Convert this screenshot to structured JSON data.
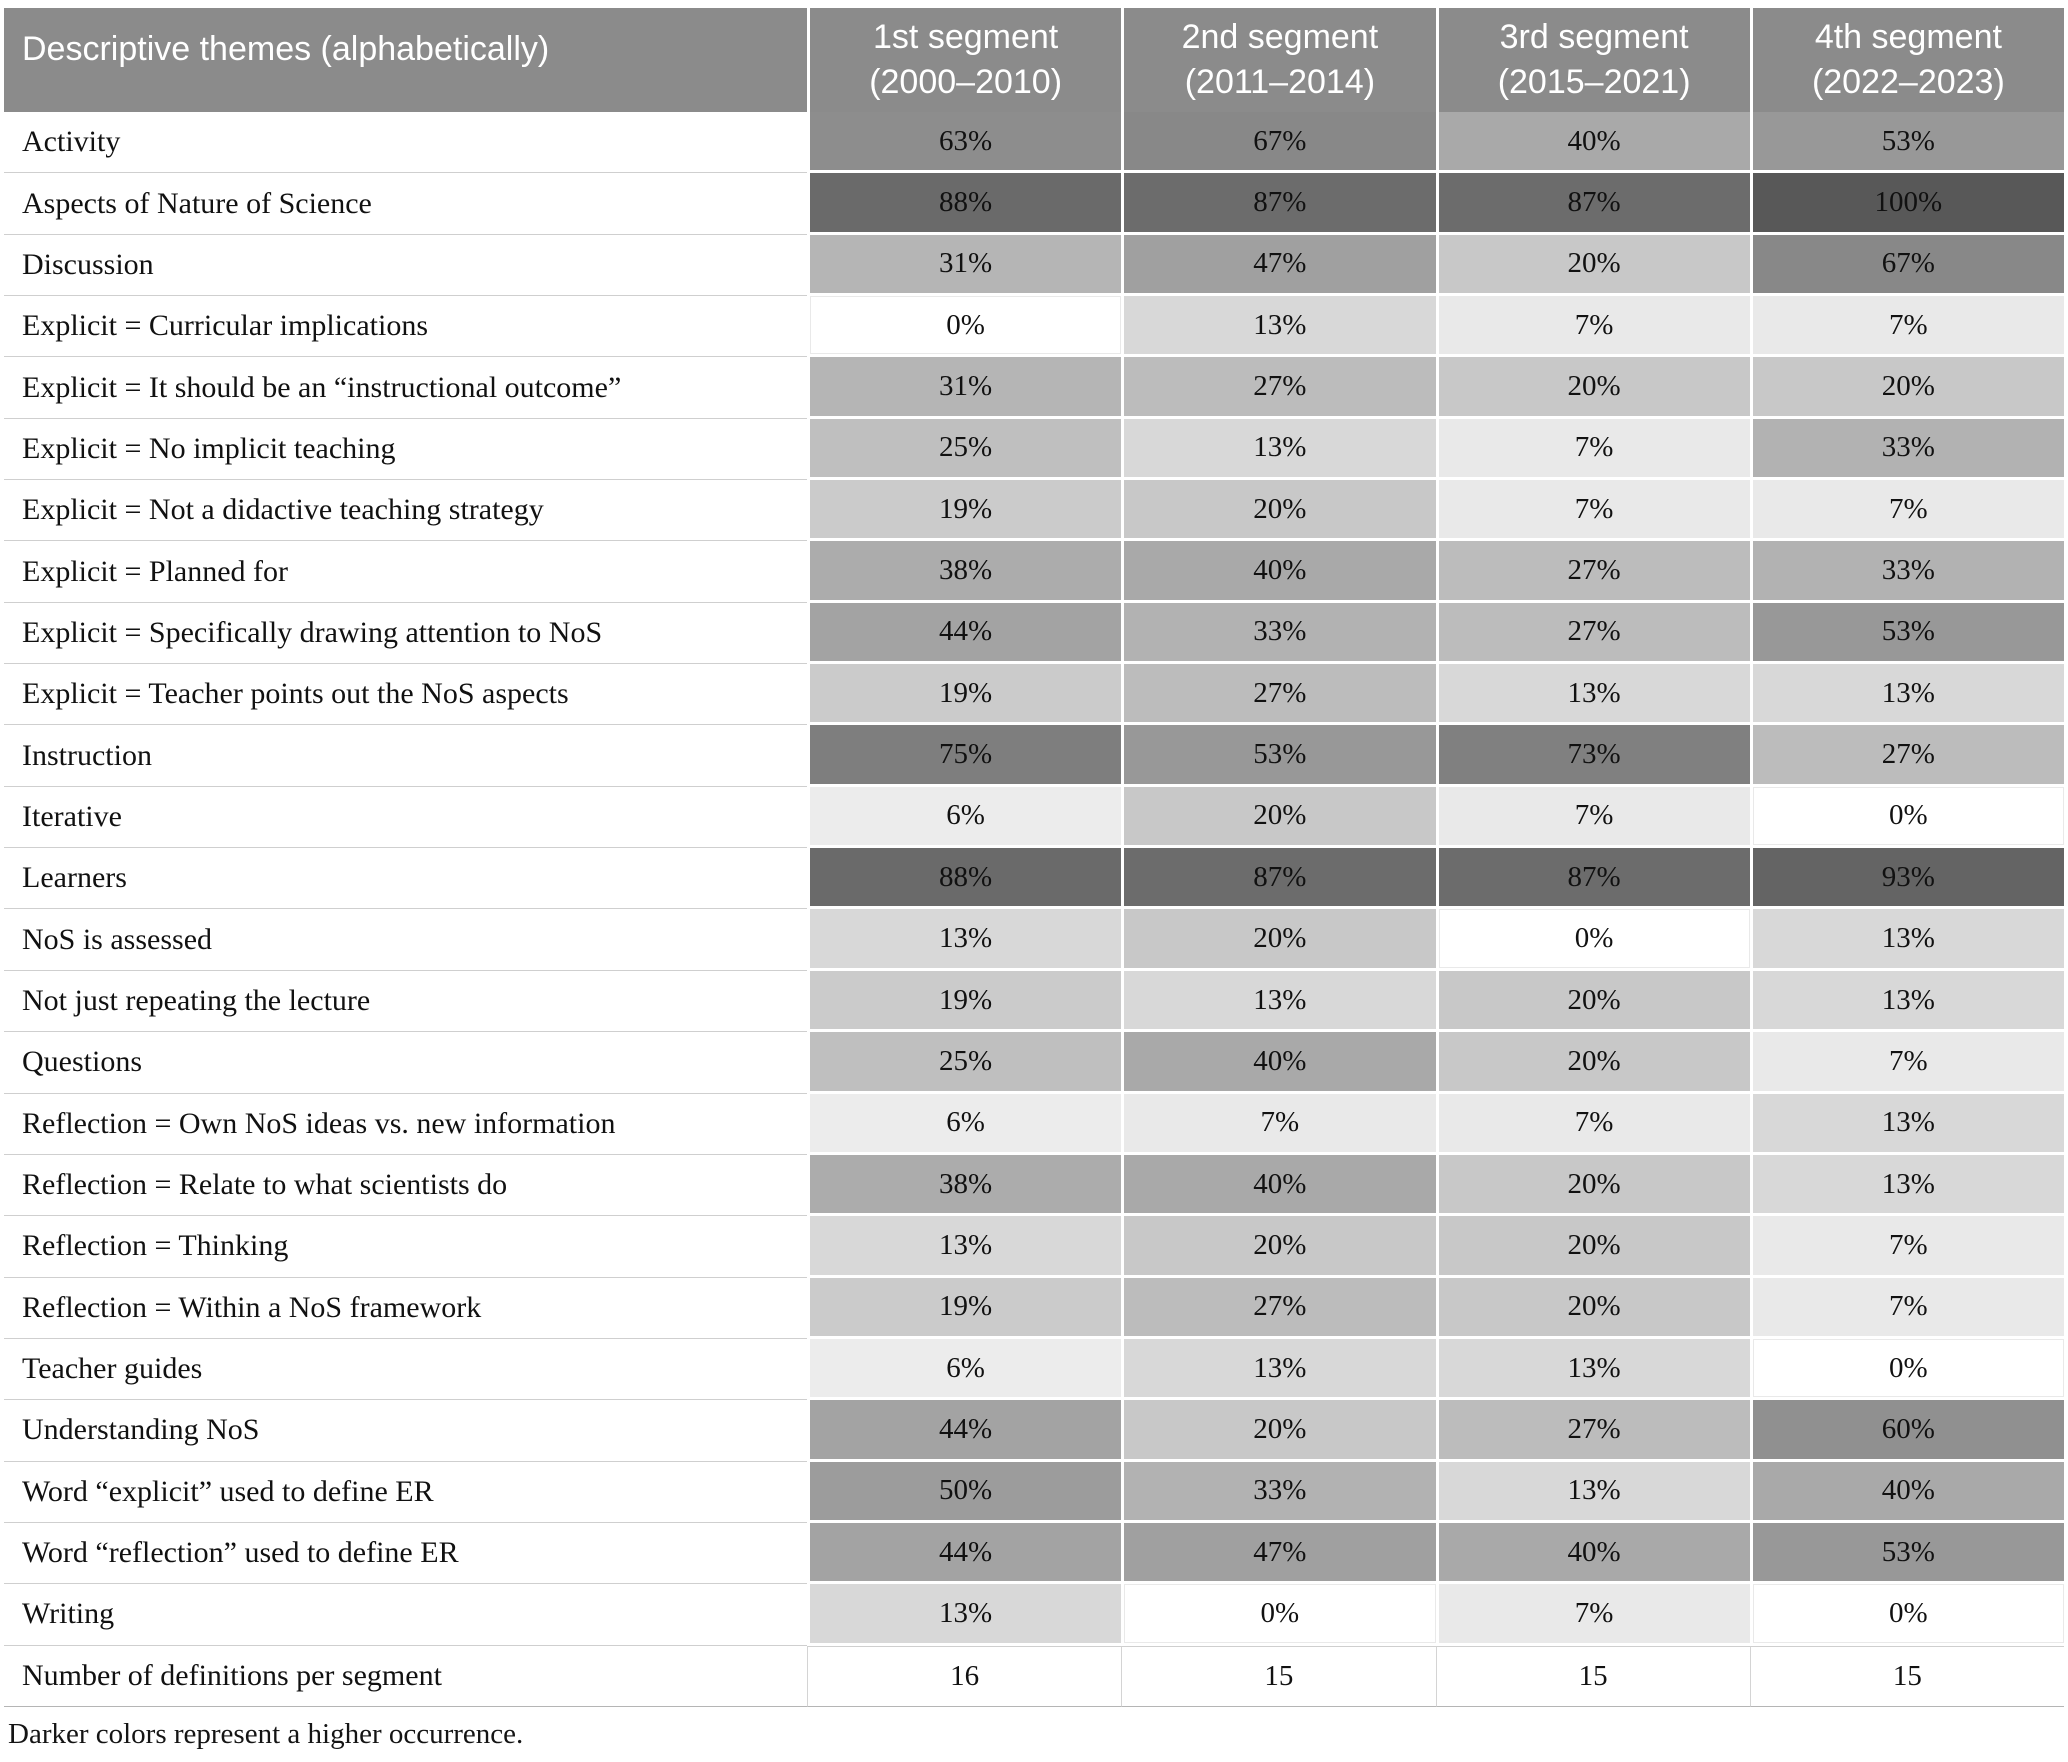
{
  "table": {
    "header": {
      "theme": "Descriptive themes (alphabetically)",
      "segments": [
        {
          "line1": "1st segment",
          "line2": "(2000–2010)"
        },
        {
          "line1": "2nd segment",
          "line2": "(2011–2014)"
        },
        {
          "line1": "3rd segment",
          "line2": "(2015–2021)"
        },
        {
          "line1": "4th segment",
          "line2": "(2022–2023)"
        }
      ]
    },
    "rows": [
      {
        "theme": "Activity",
        "values": [
          "63%",
          "67%",
          "40%",
          "53%"
        ]
      },
      {
        "theme": "Aspects of Nature of Science",
        "values": [
          "88%",
          "87%",
          "87%",
          "100%"
        ]
      },
      {
        "theme": "Discussion",
        "values": [
          "31%",
          "47%",
          "20%",
          "67%"
        ]
      },
      {
        "theme": "Explicit = Curricular implications",
        "values": [
          "0%",
          "13%",
          "7%",
          "7%"
        ]
      },
      {
        "theme": "Explicit = It should be an “instructional outcome”",
        "values": [
          "31%",
          "27%",
          "20%",
          "20%"
        ]
      },
      {
        "theme": "Explicit = No implicit teaching",
        "values": [
          "25%",
          "13%",
          "7%",
          "33%"
        ]
      },
      {
        "theme": "Explicit = Not a didactive teaching strategy",
        "values": [
          "19%",
          "20%",
          "7%",
          "7%"
        ]
      },
      {
        "theme": "Explicit = Planned for",
        "values": [
          "38%",
          "40%",
          "27%",
          "33%"
        ]
      },
      {
        "theme": "Explicit = Specifically drawing attention to NoS",
        "values": [
          "44%",
          "33%",
          "27%",
          "53%"
        ]
      },
      {
        "theme": "Explicit = Teacher points out the NoS aspects",
        "values": [
          "19%",
          "27%",
          "13%",
          "13%"
        ]
      },
      {
        "theme": "Instruction",
        "values": [
          "75%",
          "53%",
          "73%",
          "27%"
        ]
      },
      {
        "theme": "Iterative",
        "values": [
          "6%",
          "20%",
          "7%",
          "0%"
        ]
      },
      {
        "theme": "Learners",
        "values": [
          "88%",
          "87%",
          "87%",
          "93%"
        ]
      },
      {
        "theme": "NoS is assessed",
        "values": [
          "13%",
          "20%",
          "0%",
          "13%"
        ]
      },
      {
        "theme": "Not just repeating the lecture",
        "values": [
          "19%",
          "13%",
          "20%",
          "13%"
        ]
      },
      {
        "theme": "Questions",
        "values": [
          "25%",
          "40%",
          "20%",
          "7%"
        ]
      },
      {
        "theme": "Reflection = Own NoS ideas vs. new information",
        "values": [
          "6%",
          "7%",
          "7%",
          "13%"
        ]
      },
      {
        "theme": "Reflection = Relate to what scientists do",
        "values": [
          "38%",
          "40%",
          "20%",
          "13%"
        ]
      },
      {
        "theme": "Reflection = Thinking",
        "values": [
          "13%",
          "20%",
          "20%",
          "7%"
        ]
      },
      {
        "theme": "Reflection = Within a NoS framework",
        "values": [
          "19%",
          "27%",
          "20%",
          "7%"
        ]
      },
      {
        "theme": "Teacher guides",
        "values": [
          "6%",
          "13%",
          "13%",
          "0%"
        ]
      },
      {
        "theme": "Understanding NoS",
        "values": [
          "44%",
          "20%",
          "27%",
          "60%"
        ]
      },
      {
        "theme": "Word “explicit” used to define ER",
        "values": [
          "50%",
          "33%",
          "13%",
          "40%"
        ]
      },
      {
        "theme": "Word “reflection” used to define ER",
        "values": [
          "44%",
          "47%",
          "40%",
          "53%"
        ]
      },
      {
        "theme": "Writing",
        "values": [
          "13%",
          "0%",
          "7%",
          "0%"
        ]
      },
      {
        "theme": "Number of definitions per segment",
        "values": [
          "16",
          "15",
          "15",
          "15"
        ],
        "is_count": true
      }
    ],
    "footnote": "Darker colors represent a higher occurrence."
  },
  "colors": {
    "header_bg": "#8b8b8b",
    "header_text": "#ffffff",
    "cell_text": "#111111",
    "theme_separator": "#cfcfcf",
    "table_bottom_line": "#b5b5b5",
    "zero_cell_outline": "#e9e9e9",
    "shade_map": {
      "0": "#ffffff",
      "6": "#ececec",
      "7": "#e9e9e9",
      "13": "#d8d8d8",
      "19": "#cbcbcb",
      "20": "#c8c8c8",
      "25": "#bfbfbf",
      "27": "#bcbcbc",
      "31": "#b5b5b5",
      "33": "#b2b2b2",
      "38": "#acacac",
      "40": "#a9a9a9",
      "44": "#a3a3a3",
      "47": "#a0a0a0",
      "50": "#9c9c9c",
      "53": "#989898",
      "60": "#909090",
      "63": "#8d8d8d",
      "67": "#888888",
      "73": "#808080",
      "75": "#7e7e7e",
      "87": "#6c6c6c",
      "88": "#6a6a6a",
      "93": "#646464",
      "100": "#585858"
    }
  },
  "chart_data": {
    "type": "heatmap",
    "title": "Descriptive themes (alphabetically) by publication time segment",
    "row_label_header": "Descriptive themes (alphabetically)",
    "columns": [
      "1st segment (2000–2010)",
      "2nd segment (2011–2014)",
      "3rd segment (2015–2021)",
      "4th segment (2022–2023)"
    ],
    "rows": [
      "Activity",
      "Aspects of Nature of Science",
      "Discussion",
      "Explicit = Curricular implications",
      "Explicit = It should be an “instructional outcome”",
      "Explicit = No implicit teaching",
      "Explicit = Not a didactive teaching strategy",
      "Explicit = Planned for",
      "Explicit = Specifically drawing attention to NoS",
      "Explicit = Teacher points out the NoS aspects",
      "Instruction",
      "Iterative",
      "Learners",
      "NoS is assessed",
      "Not just repeating the lecture",
      "Questions",
      "Reflection = Own NoS ideas vs. new information",
      "Reflection = Relate to what scientists do",
      "Reflection = Thinking",
      "Reflection = Within a NoS framework",
      "Teacher guides",
      "Understanding NoS",
      "Word “explicit” used to define ER",
      "Word “reflection” used to define ER",
      "Writing"
    ],
    "values_percent": [
      [
        63,
        67,
        40,
        53
      ],
      [
        88,
        87,
        87,
        100
      ],
      [
        31,
        47,
        20,
        67
      ],
      [
        0,
        13,
        7,
        7
      ],
      [
        31,
        27,
        20,
        20
      ],
      [
        25,
        13,
        7,
        33
      ],
      [
        19,
        20,
        7,
        7
      ],
      [
        38,
        40,
        27,
        33
      ],
      [
        44,
        33,
        27,
        53
      ],
      [
        19,
        27,
        13,
        13
      ],
      [
        75,
        53,
        73,
        27
      ],
      [
        6,
        20,
        7,
        0
      ],
      [
        88,
        87,
        87,
        93
      ],
      [
        13,
        20,
        0,
        13
      ],
      [
        19,
        13,
        20,
        13
      ],
      [
        25,
        40,
        20,
        7
      ],
      [
        6,
        7,
        7,
        13
      ],
      [
        38,
        40,
        20,
        13
      ],
      [
        13,
        20,
        20,
        7
      ],
      [
        19,
        27,
        20,
        7
      ],
      [
        6,
        13,
        13,
        0
      ],
      [
        44,
        20,
        27,
        60
      ],
      [
        50,
        33,
        13,
        40
      ],
      [
        44,
        47,
        40,
        53
      ],
      [
        13,
        0,
        7,
        0
      ]
    ],
    "extra_row": {
      "label": "Number of definitions per segment",
      "values": [
        16,
        15,
        15,
        15
      ]
    },
    "color_scale": {
      "min_value": 0,
      "min_color": "#ffffff",
      "max_value": 100,
      "max_color": "#585858"
    },
    "legend_position": "none",
    "grid": "cell borders, white gaps",
    "note": "Darker colors represent a higher occurrence."
  }
}
